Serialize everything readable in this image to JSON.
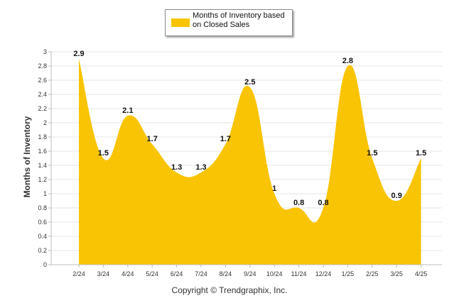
{
  "chart_data": {
    "type": "area",
    "categories": [
      "2/24",
      "3/24",
      "4/24",
      "5/24",
      "6/24",
      "7/24",
      "8/24",
      "9/24",
      "10/24",
      "11/24",
      "12/24",
      "1/25",
      "2/25",
      "3/25",
      "4/25"
    ],
    "series": [
      {
        "name": "Months of Inventory based on Closed Sales",
        "values": [
          2.9,
          1.5,
          2.1,
          1.7,
          1.3,
          1.3,
          1.7,
          2.5,
          1.0,
          0.8,
          0.8,
          2.8,
          1.5,
          0.9,
          1.5
        ]
      }
    ],
    "data_labels": [
      "2.9",
      "1.5",
      "2.1",
      "1.7",
      "1.3",
      "1.3",
      "1.7",
      "2.5",
      "1",
      "0.8",
      "0.8",
      "2.8",
      "1.5",
      "0.9",
      "1.5"
    ],
    "ylabel": "Months of Inventory",
    "xlabel": "",
    "ylim": [
      0,
      3
    ],
    "yticks": [
      "0",
      "0.2",
      "0.4",
      "0.6",
      "0.8",
      "1",
      "1.2",
      "1.4",
      "1.6",
      "1.8",
      "2",
      "2.2",
      "2.4",
      "2.6",
      "2.8",
      "3"
    ],
    "grid": true,
    "legend_position": "top-center",
    "color": "#F9C404"
  },
  "legend": {
    "label": "Months of Inventory based on Closed Sales"
  },
  "footer": {
    "copyright": "Copyright © Trendgraphix, Inc."
  }
}
